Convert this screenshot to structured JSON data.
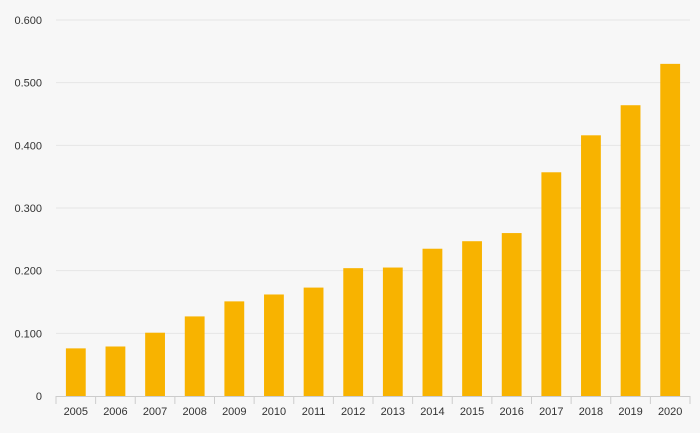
{
  "chart_data": {
    "type": "bar",
    "title": "",
    "xlabel": "",
    "ylabel": "",
    "categories": [
      "2005",
      "2006",
      "2007",
      "2008",
      "2009",
      "2010",
      "2011",
      "2012",
      "2013",
      "2014",
      "2015",
      "2016",
      "2017",
      "2018",
      "2019",
      "2020"
    ],
    "values": [
      0.076,
      0.079,
      0.101,
      0.127,
      0.151,
      0.162,
      0.173,
      0.204,
      0.205,
      0.235,
      0.247,
      0.26,
      0.357,
      0.416,
      0.464,
      0.53
    ],
    "ylim": [
      0,
      0.6
    ],
    "yticks": [
      0,
      0.1,
      0.2,
      0.3,
      0.4,
      0.5,
      0.6
    ],
    "ytick_labels": [
      "0",
      "0.100",
      "0.200",
      "0.300",
      "0.400",
      "0.500",
      "0.600"
    ],
    "grid": true,
    "legend": "none",
    "colors": {
      "bar": "#f8b300",
      "background": "#f7f7f7",
      "grid": "#e6e6e6"
    }
  }
}
